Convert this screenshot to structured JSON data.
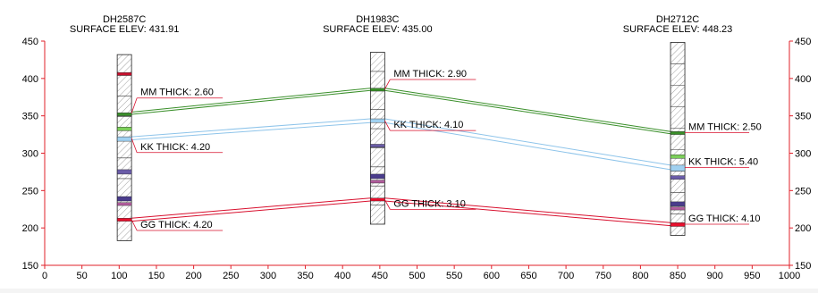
{
  "chart_data": {
    "type": "cross-section",
    "x_ticks": [
      0,
      50,
      100,
      150,
      200,
      250,
      300,
      350,
      400,
      450,
      500,
      550,
      600,
      650,
      700,
      750,
      800,
      850,
      900,
      950,
      1000
    ],
    "y_ticks": [
      150,
      200,
      250,
      300,
      350,
      400,
      450
    ],
    "xlim": [
      0,
      1000
    ],
    "ylim": [
      150,
      450
    ],
    "axis_color": "#e0202a",
    "holes": [
      {
        "id": "DH2587C",
        "elev_label": "SURFACE ELEV: 431.91",
        "x": 107,
        "top": 431.91,
        "bottom": 183,
        "bands": [
          {
            "from": 408,
            "to": 404,
            "color": "#c8102e"
          },
          {
            "from": 354,
            "to": 350,
            "color": "#3a8f2a"
          },
          {
            "from": 335,
            "to": 330,
            "color": "#7ccf5a"
          },
          {
            "from": 322,
            "to": 316,
            "color": "#9fd0f0"
          },
          {
            "from": 278,
            "to": 272,
            "color": "#6a5ca8"
          },
          {
            "from": 242,
            "to": 236,
            "color": "#4a3c8c"
          },
          {
            "from": 234,
            "to": 230,
            "color": "#b05c9c"
          },
          {
            "from": 213,
            "to": 209,
            "color": "#e8102e"
          }
        ]
      },
      {
        "id": "DH1983C",
        "elev_label": "SURFACE ELEV: 435.00",
        "x": 447,
        "top": 435,
        "bottom": 205,
        "bands": [
          {
            "from": 387,
            "to": 383,
            "color": "#3a8f2a"
          },
          {
            "from": 346,
            "to": 341,
            "color": "#9fd0f0"
          },
          {
            "from": 312,
            "to": 308,
            "color": "#6a5ca8"
          },
          {
            "from": 272,
            "to": 266,
            "color": "#4a3c8c"
          },
          {
            "from": 264,
            "to": 260,
            "color": "#b05c9c"
          },
          {
            "from": 240,
            "to": 236,
            "color": "#e8102e"
          }
        ]
      },
      {
        "id": "DH2712C",
        "elev_label": "SURFACE ELEV: 448.23",
        "x": 850,
        "top": 448.23,
        "bottom": 190,
        "bands": [
          {
            "from": 329,
            "to": 325,
            "color": "#3a8f2a"
          },
          {
            "from": 298,
            "to": 293,
            "color": "#7ccf5a"
          },
          {
            "from": 284,
            "to": 276,
            "color": "#9fd0f0"
          },
          {
            "from": 270,
            "to": 265,
            "color": "#6a5ca8"
          },
          {
            "from": 235,
            "to": 229,
            "color": "#4a3c8c"
          },
          {
            "from": 228,
            "to": 224,
            "color": "#b05c9c"
          },
          {
            "from": 207,
            "to": 202,
            "color": "#e8102e"
          }
        ]
      }
    ],
    "seams": [
      {
        "name": "MM",
        "color": "#3a8f2a",
        "tops": [
          355,
          387,
          329
        ],
        "bottoms": [
          352,
          384,
          326
        ]
      },
      {
        "name": "KK",
        "color": "#8ec4ea",
        "tops": [
          322,
          346,
          284
        ],
        "bottoms": [
          318,
          341,
          278
        ]
      },
      {
        "name": "GG",
        "color": "#d8102e",
        "tops": [
          213,
          240,
          207
        ],
        "bottoms": [
          209,
          236,
          203
        ]
      }
    ],
    "labels": [
      {
        "text": "MM THICK: 2.60",
        "hole": 0,
        "seam": 0
      },
      {
        "text": "KK THICK: 4.20",
        "hole": 0,
        "seam": 1
      },
      {
        "text": "GG THICK: 4.20",
        "hole": 0,
        "seam": 2
      },
      {
        "text": "MM THICK: 2.90",
        "hole": 1,
        "seam": 0
      },
      {
        "text": "KK THICK: 4.10",
        "hole": 1,
        "seam": 1
      },
      {
        "text": "GG THICK: 3.10",
        "hole": 1,
        "seam": 2
      },
      {
        "text": "MM THICK: 2.50",
        "hole": 2,
        "seam": 0
      },
      {
        "text": "KK THICK: 5.40",
        "hole": 2,
        "seam": 1
      },
      {
        "text": "GG THICK: 4.10",
        "hole": 2,
        "seam": 2
      }
    ]
  }
}
